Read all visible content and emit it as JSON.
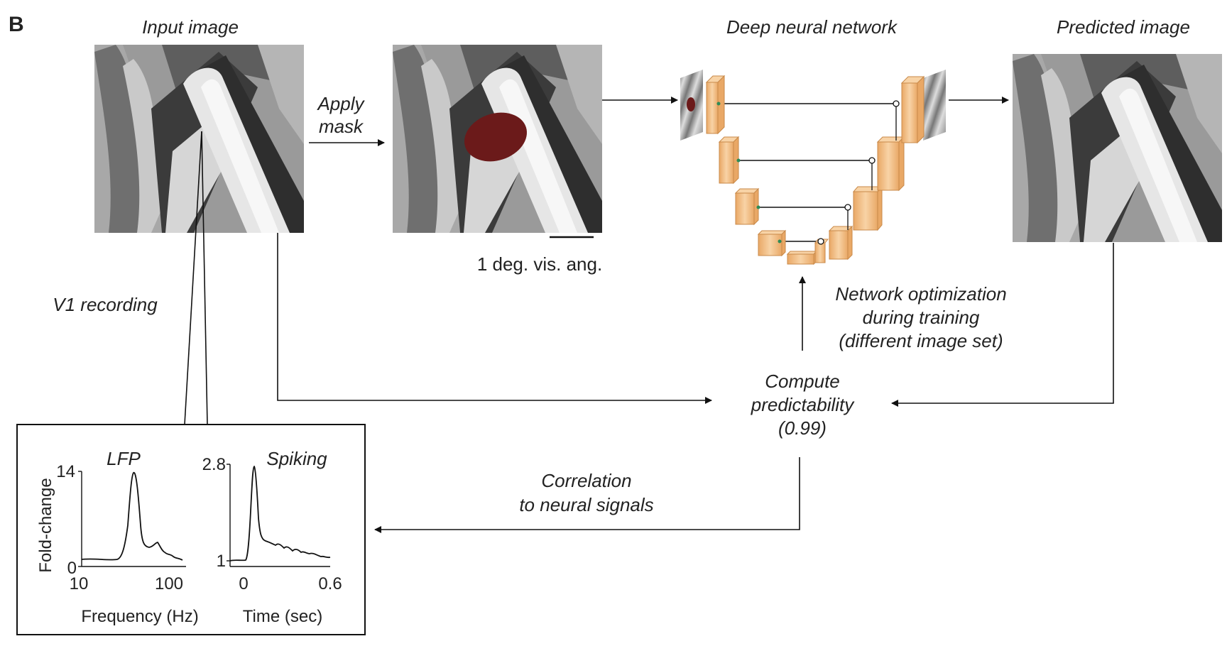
{
  "panel_label": "B",
  "stages": {
    "input_title": "Input image",
    "apply_mask": [
      "Apply",
      "mask"
    ],
    "network_title": "Deep neural network",
    "predicted_title": "Predicted image",
    "scale_bar_label": "1 deg. vis. ang.",
    "v1_label": "V1 recording",
    "optimization_label": [
      "Network optimization",
      "during training",
      "(different image set)"
    ],
    "compute_label": [
      "Compute",
      "predictability",
      "(0.99)"
    ],
    "correlation_label": [
      "Correlation",
      "to neural signals"
    ]
  },
  "colors": {
    "mask": "#6b1a1a",
    "network_block": "#f5c48e",
    "network_block_edge": "#c98a4a",
    "skip_node": "#2e8b57"
  },
  "inset": {
    "lfp": {
      "title": "LFP",
      "ylabel": "Fold-change",
      "xlabel": "Frequency (Hz)",
      "y_ticks": [
        "14",
        "0"
      ],
      "x_ticks": [
        "10",
        "100"
      ],
      "x_scale": "log",
      "ylim": [
        0,
        14
      ],
      "xlim": [
        10,
        150
      ],
      "peak": {
        "x": 40,
        "y": 13.5
      }
    },
    "spiking": {
      "title": "Spiking",
      "xlabel": "Time (sec)",
      "y_ticks": [
        "2.8",
        "1"
      ],
      "x_ticks": [
        "0",
        "0.6"
      ],
      "ylim": [
        1,
        2.8
      ],
      "xlim": [
        0,
        0.6
      ],
      "peak": {
        "x": 0.07,
        "y": 2.75
      }
    }
  }
}
